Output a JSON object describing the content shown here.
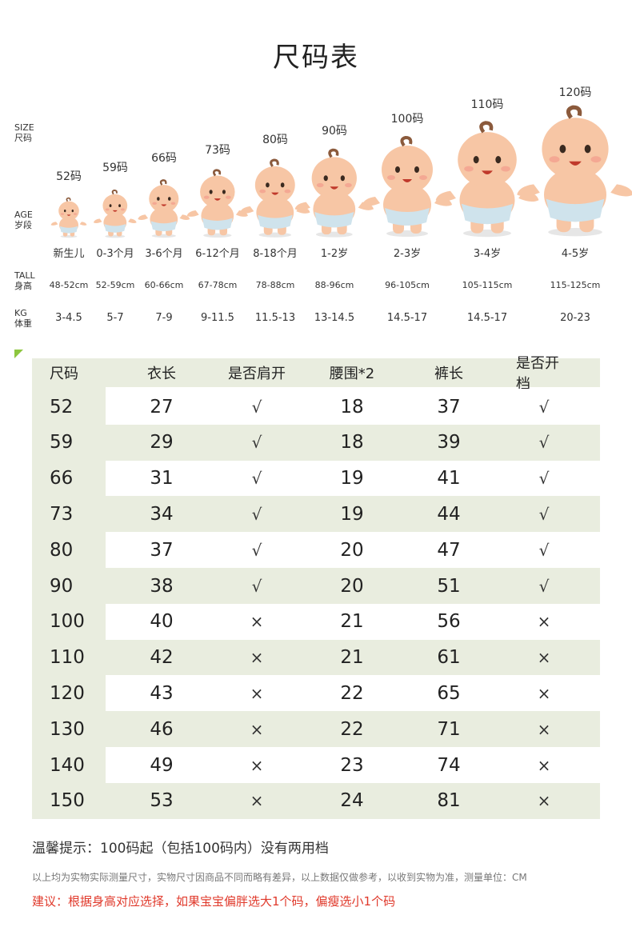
{
  "title": "尺码表",
  "labels": {
    "size_en": "SIZE",
    "size_cn": "尺码",
    "age_en": "AGE",
    "age_cn": "岁段",
    "tall_en": "TALL",
    "tall_cn": "身高",
    "kg_en": "KG",
    "kg_cn": "体重"
  },
  "sizes": [
    {
      "code": "52码",
      "age": "新生儿",
      "tall": "48-52cm",
      "kg": "3-4.5"
    },
    {
      "code": "59码",
      "age": "0-3个月",
      "tall": "52-59cm",
      "kg": "5-7"
    },
    {
      "code": "66码",
      "age": "3-6个月",
      "tall": "60-66cm",
      "kg": "7-9"
    },
    {
      "code": "73码",
      "age": "6-12个月",
      "tall": "67-78cm",
      "kg": "9-11.5"
    },
    {
      "code": "80码",
      "age": "8-18个月",
      "tall": "78-88cm",
      "kg": "11.5-13"
    },
    {
      "code": "90码",
      "age": "1-2岁",
      "tall": "88-96cm",
      "kg": "13-14.5"
    },
    {
      "code": "100码",
      "age": "2-3岁",
      "tall": "96-105cm",
      "kg": "14.5-17"
    },
    {
      "code": "110码",
      "age": "3-4岁",
      "tall": "105-115cm",
      "kg": "14.5-17"
    },
    {
      "code": "120码",
      "age": "4-5岁",
      "tall": "115-125cm",
      "kg": "20-23"
    }
  ],
  "table": {
    "headers": [
      "尺码",
      "衣长",
      "是否肩开",
      "腰围*2",
      "裤长",
      "是否开档"
    ],
    "rows": [
      [
        "52",
        "27",
        "√",
        "18",
        "37",
        "√"
      ],
      [
        "59",
        "29",
        "√",
        "18",
        "39",
        "√"
      ],
      [
        "66",
        "31",
        "√",
        "19",
        "41",
        "√"
      ],
      [
        "73",
        "34",
        "√",
        "19",
        "44",
        "√"
      ],
      [
        "80",
        "37",
        "√",
        "20",
        "47",
        "√"
      ],
      [
        "90",
        "38",
        "√",
        "20",
        "51",
        "√"
      ],
      [
        "100",
        "40",
        "×",
        "21",
        "56",
        "×"
      ],
      [
        "110",
        "42",
        "×",
        "21",
        "61",
        "×"
      ],
      [
        "120",
        "43",
        "×",
        "22",
        "65",
        "×"
      ],
      [
        "130",
        "46",
        "×",
        "22",
        "71",
        "×"
      ],
      [
        "140",
        "49",
        "×",
        "23",
        "74",
        "×"
      ],
      [
        "150",
        "53",
        "×",
        "24",
        "81",
        "×"
      ]
    ]
  },
  "tip": "温馨提示：100码起（包括100码内）没有两用档",
  "note": "以上均为实物实际测量尺寸，实物尺寸因商品不同而略有差异，以上数据仅做参考，以收到实物为准，测量单位：CM",
  "suggestion": "建议：根据身高对应选择，如果宝宝偏胖选大1个码，偏瘦选小1个码",
  "colors": {
    "accent": "#8dc63f",
    "row_shade": "#e9eddf",
    "warning": "#e0392b",
    "skin": "#f7c6a5",
    "diaper": "#cfe3ec"
  }
}
